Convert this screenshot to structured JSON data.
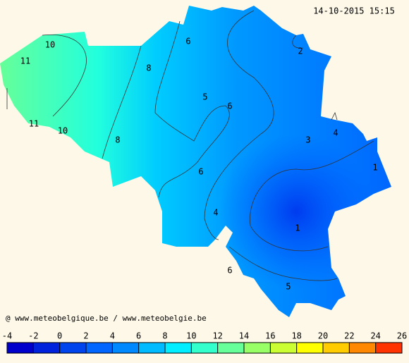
{
  "map": {
    "timestamp": "14-10-2015 15:15",
    "credit": "@ www.meteobelgique.be / www.meteobelgie.be",
    "contour_labels": [
      10,
      11,
      11,
      10,
      8,
      8,
      6,
      5,
      6,
      6,
      4,
      6,
      2,
      3,
      4,
      1,
      1,
      5
    ],
    "colorbar": {
      "ticks": [
        -4,
        -2,
        0,
        2,
        4,
        6,
        8,
        10,
        12,
        14,
        16,
        18,
        20,
        22,
        24,
        26
      ],
      "colors": [
        "#0000cc",
        "#0022dd",
        "#0044ee",
        "#0066ff",
        "#0088ff",
        "#00bbff",
        "#00eeff",
        "#33ffcc",
        "#66ff99",
        "#99ff66",
        "#ccff33",
        "#ffff00",
        "#ffcc00",
        "#ff8800",
        "#ff3300"
      ]
    }
  }
}
